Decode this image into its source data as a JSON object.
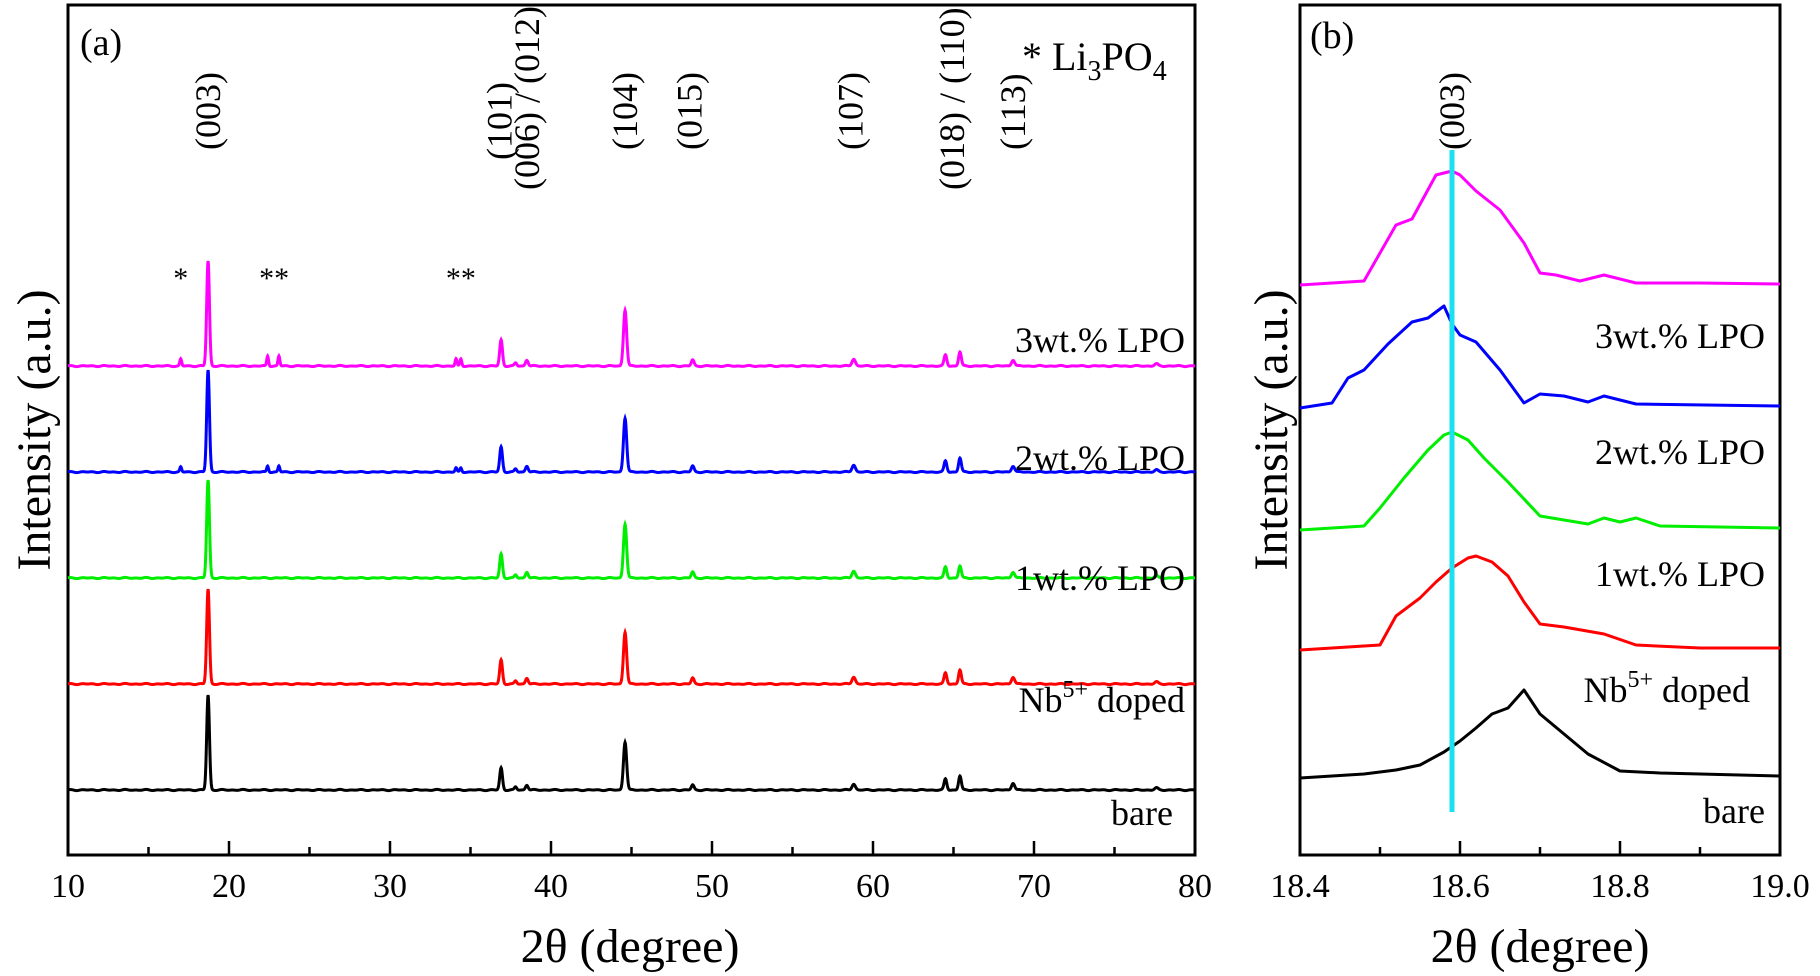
{
  "chart_data": [
    {
      "type": "line",
      "panel": "(a)",
      "xlabel": "2θ (degree)",
      "ylabel": "Intensity (a.u.)",
      "xlim": [
        10,
        80
      ],
      "xticks": [
        10,
        20,
        30,
        40,
        50,
        60,
        70,
        80
      ],
      "legend_note": {
        "prefix": "* Li",
        "sub1": "3",
        "mid": "PO",
        "sub2": "4"
      },
      "star_markers": [
        {
          "x": 17.0,
          "text": "*"
        },
        {
          "x": 22.8,
          "text": "**"
        },
        {
          "x": 34.4,
          "text": "**"
        }
      ],
      "hkl_labels": [
        {
          "x": 18.7,
          "text": "(003)"
        },
        {
          "x": 36.8,
          "text": "(101)"
        },
        {
          "x": 38.5,
          "text": "(006) / (012)"
        },
        {
          "x": 44.6,
          "text": "(104)"
        },
        {
          "x": 48.6,
          "text": "(015)"
        },
        {
          "x": 58.6,
          "text": "(107)"
        },
        {
          "x": 64.9,
          "text": "(018) / (110)"
        },
        {
          "x": 68.7,
          "text": "(113)"
        }
      ],
      "peaks": [
        {
          "x": 18.7,
          "w": 0.12
        },
        {
          "x": 36.9,
          "w": 0.12
        },
        {
          "x": 37.8,
          "w": 0.1
        },
        {
          "x": 38.5,
          "w": 0.12
        },
        {
          "x": 44.6,
          "w": 0.14
        },
        {
          "x": 48.8,
          "w": 0.12
        },
        {
          "x": 58.8,
          "w": 0.15
        },
        {
          "x": 64.5,
          "w": 0.12
        },
        {
          "x": 65.4,
          "w": 0.12
        },
        {
          "x": 68.7,
          "w": 0.14
        },
        {
          "x": 77.6,
          "w": 0.15
        }
      ],
      "series": [
        {
          "name": "bare",
          "label": "bare",
          "color": "#000000",
          "offset": 0,
          "heights": [
            95,
            22,
            3,
            5,
            48,
            5,
            6,
            11,
            14,
            7,
            2
          ],
          "impurities": []
        },
        {
          "name": "nb",
          "label_main": "Nb",
          "label_sup": "5+",
          "label_rest": " doped",
          "color": "#ff0000",
          "offset": 106,
          "heights": [
            95,
            24,
            3,
            6,
            52,
            6,
            7,
            11,
            14,
            7,
            2
          ],
          "impurities": []
        },
        {
          "name": "lpo1",
          "label": "1wt.% LPO",
          "color": "#00ee00",
          "offset": 212,
          "heights": [
            98,
            24,
            3,
            6,
            54,
            6,
            7,
            11,
            12,
            6,
            2
          ],
          "impurities": []
        },
        {
          "name": "lpo2",
          "label": "2wt.% LPO",
          "color": "#0000ff",
          "offset": 318,
          "heights": [
            102,
            25,
            3,
            6,
            54,
            6,
            7,
            11,
            14,
            6,
            2
          ],
          "impurities": [
            {
              "x": 17.0,
              "h": 5
            },
            {
              "x": 22.4,
              "h": 6
            },
            {
              "x": 23.1,
              "h": 6
            },
            {
              "x": 34.1,
              "h": 4
            },
            {
              "x": 34.4,
              "h": 4
            }
          ]
        },
        {
          "name": "lpo3",
          "label": "3wt.% LPO",
          "color": "#ff00ff",
          "offset": 424,
          "heights": [
            105,
            26,
            3,
            6,
            56,
            6,
            7,
            11,
            14,
            6,
            2
          ],
          "impurities": [
            {
              "x": 17.0,
              "h": 7
            },
            {
              "x": 22.4,
              "h": 10
            },
            {
              "x": 23.1,
              "h": 10
            },
            {
              "x": 34.1,
              "h": 7
            },
            {
              "x": 34.4,
              "h": 7
            }
          ]
        }
      ]
    },
    {
      "type": "line",
      "panel": "(b)",
      "xlabel": "2θ (degree)",
      "ylabel": "Intensity (a.u.)",
      "xlim": [
        18.4,
        19.0
      ],
      "xticks": [
        18.4,
        18.6,
        18.8,
        19.0
      ],
      "xtick_labels": [
        "18.4",
        "18.6",
        "18.8",
        "19.0"
      ],
      "hkl_label": {
        "x": 18.59,
        "text": "(003)"
      },
      "reference_line": {
        "x": 18.59,
        "color": "#1ae0f0"
      },
      "series": [
        {
          "name": "bare",
          "label": "bare",
          "color": "#000000",
          "x": [
            18.4,
            18.48,
            18.52,
            18.55,
            18.58,
            18.6,
            18.62,
            18.64,
            18.66,
            18.68,
            18.7,
            18.73,
            18.76,
            18.8,
            18.85,
            18.9,
            19.0
          ],
          "y": [
            0,
            4,
            8,
            13,
            26,
            37,
            50,
            64,
            70,
            88,
            64,
            44,
            24,
            7,
            5,
            4,
            2
          ]
        },
        {
          "name": "nb",
          "label_main": "Nb",
          "label_sup": "5+",
          "label_rest": " doped",
          "color": "#ff0000",
          "x": [
            18.4,
            18.5,
            18.52,
            18.55,
            18.57,
            18.59,
            18.61,
            18.62,
            18.64,
            18.66,
            18.68,
            18.7,
            18.73,
            18.78,
            18.82,
            18.9,
            19.0
          ],
          "y": [
            0,
            5,
            34,
            52,
            68,
            82,
            92,
            94,
            88,
            74,
            48,
            26,
            23,
            16,
            5,
            2,
            2
          ]
        },
        {
          "name": "lpo1",
          "label": "1wt.% LPO",
          "color": "#00ee00",
          "x": [
            18.4,
            18.48,
            18.5,
            18.53,
            18.56,
            18.58,
            18.59,
            18.61,
            18.63,
            18.66,
            18.7,
            18.76,
            18.78,
            18.8,
            18.82,
            18.85,
            19.0
          ],
          "y": [
            0,
            4,
            22,
            52,
            80,
            95,
            98,
            90,
            72,
            48,
            14,
            6,
            12,
            8,
            12,
            4,
            2
          ]
        },
        {
          "name": "lpo2",
          "label": "2wt.% LPO",
          "color": "#0000ff",
          "x": [
            18.4,
            18.44,
            18.46,
            18.48,
            18.51,
            18.54,
            18.56,
            18.58,
            18.59,
            18.6,
            18.62,
            18.65,
            18.68,
            18.7,
            18.73,
            18.76,
            18.78,
            18.82,
            19.0
          ],
          "y": [
            0,
            5,
            30,
            38,
            64,
            86,
            90,
            102,
            84,
            73,
            66,
            38,
            5,
            14,
            12,
            6,
            12,
            4,
            2
          ]
        },
        {
          "name": "lpo3",
          "label": "3wt.% LPO",
          "color": "#ff00ff",
          "x": [
            18.4,
            18.48,
            18.52,
            18.54,
            18.57,
            18.59,
            18.6,
            18.62,
            18.65,
            18.68,
            18.7,
            18.72,
            18.75,
            18.78,
            18.82,
            18.9,
            19.0
          ],
          "y": [
            0,
            4,
            60,
            66,
            110,
            114,
            110,
            94,
            75,
            42,
            12,
            10,
            4,
            10,
            2,
            2,
            1
          ]
        }
      ]
    }
  ]
}
